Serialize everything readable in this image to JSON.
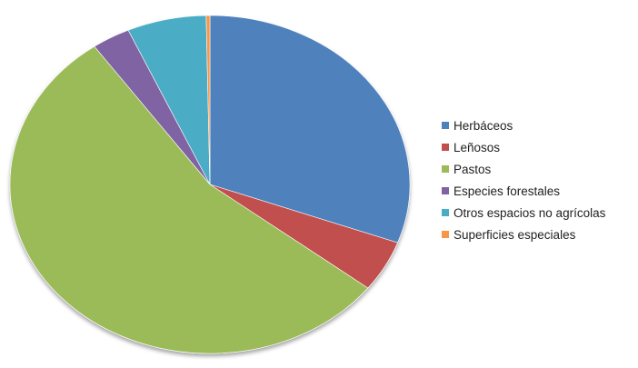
{
  "chart_data": {
    "type": "pie",
    "title": "",
    "start_angle_deg": 90,
    "direction": "clockwise",
    "legend_position": "right",
    "slices": [
      {
        "label": "Herbáceos",
        "value": 30.6,
        "color": "#4F81BD"
      },
      {
        "label": "Leñosos",
        "value": 4.9,
        "color": "#C0504D"
      },
      {
        "label": "Pastos",
        "value": 54.7,
        "color": "#9BBB59"
      },
      {
        "label": "Especies forestales",
        "value": 3.1,
        "color": "#8064A2"
      },
      {
        "label": "Otros espacios no agrícolas",
        "value": 6.4,
        "color": "#4BACC6"
      },
      {
        "label": "Superficies especiales",
        "value": 0.3,
        "color": "#F79646"
      }
    ]
  }
}
